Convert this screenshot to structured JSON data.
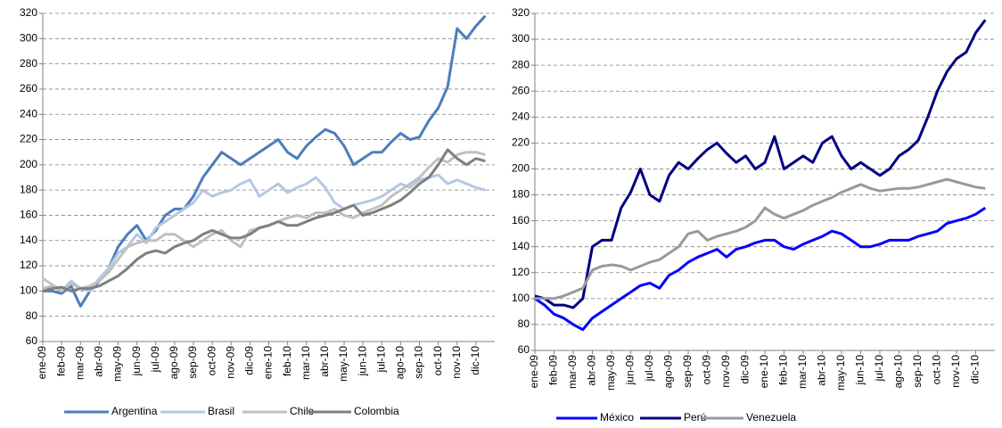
{
  "chart_data": [
    {
      "type": "line",
      "categories": [
        "ene-09",
        null,
        "feb-09",
        null,
        "mar-09",
        null,
        "abr-09",
        null,
        "may-09",
        null,
        "jun-09",
        null,
        "jul-09",
        null,
        "ago-09",
        null,
        "sep-09",
        null,
        "oct-09",
        null,
        "nov-09",
        null,
        "dic-09",
        null,
        "ene-10",
        null,
        "feb-10",
        null,
        "mar-10",
        null,
        "abr-10",
        null,
        "may-10",
        null,
        "jun-10",
        null,
        "jul-10",
        null,
        "ago-10",
        null,
        "sep-10",
        null,
        "oct-10",
        null,
        "nov-10",
        null,
        "dic-10",
        null
      ],
      "series": [
        {
          "name": "Argentina",
          "color": "#4a7ebb",
          "values": [
            100,
            100,
            98,
            104,
            88,
            100,
            108,
            118,
            135,
            145,
            152,
            140,
            148,
            160,
            165,
            165,
            175,
            190,
            200,
            210,
            205,
            200,
            205,
            210,
            215,
            220,
            210,
            205,
            215,
            222,
            228,
            225,
            215,
            200,
            205,
            210,
            210,
            218,
            225,
            220,
            222,
            235,
            245,
            262,
            308,
            300,
            310,
            318
          ]
        },
        {
          "name": "Brasil",
          "color": "#b4c8e4",
          "values": [
            110,
            105,
            100,
            108,
            102,
            100,
            110,
            118,
            130,
            135,
            145,
            138,
            150,
            155,
            160,
            165,
            170,
            180,
            175,
            178,
            180,
            185,
            188,
            175,
            180,
            185,
            178,
            182,
            185,
            190,
            182,
            170,
            165,
            168,
            170,
            172,
            175,
            180,
            185,
            182,
            188,
            190,
            192,
            185,
            188,
            185,
            182,
            180
          ]
        },
        {
          "name": "Chile",
          "color": "#c0c0c0",
          "values": [
            102,
            104,
            100,
            106,
            102,
            104,
            108,
            115,
            125,
            135,
            138,
            140,
            140,
            145,
            145,
            140,
            135,
            140,
            145,
            148,
            140,
            135,
            148,
            150,
            152,
            155,
            158,
            160,
            158,
            162,
            162,
            165,
            160,
            158,
            162,
            165,
            168,
            175,
            180,
            185,
            190,
            198,
            205,
            202,
            208,
            210,
            210,
            208
          ]
        },
        {
          "name": "Colombia",
          "color": "#7f7f7f",
          "values": [
            100,
            102,
            103,
            100,
            102,
            102,
            104,
            108,
            112,
            118,
            125,
            130,
            132,
            130,
            135,
            138,
            140,
            145,
            148,
            145,
            142,
            142,
            145,
            150,
            152,
            155,
            152,
            152,
            155,
            158,
            160,
            162,
            165,
            168,
            160,
            162,
            165,
            168,
            172,
            178,
            185,
            190,
            200,
            212,
            205,
            200,
            205,
            203
          ]
        }
      ],
      "ylim": [
        60,
        320
      ],
      "yticks": [
        60,
        80,
        100,
        120,
        140,
        160,
        180,
        200,
        220,
        240,
        260,
        280,
        300,
        320
      ],
      "grid": true
    },
    {
      "type": "line",
      "categories": [
        "ene-09",
        null,
        "feb-09",
        null,
        "mar-09",
        null,
        "abr-09",
        null,
        "may-09",
        null,
        "jun-09",
        null,
        "jul-09",
        null,
        "ago-09",
        null,
        "sep-09",
        null,
        "oct-09",
        null,
        "nov-09",
        null,
        "dic-09",
        null,
        "ene-10",
        null,
        "feb-10",
        null,
        "mar-10",
        null,
        "abr-10",
        null,
        "may-10",
        null,
        "jun-10",
        null,
        "jul-10",
        null,
        "ago-10",
        null,
        "sep-10",
        null,
        "oct-10",
        null,
        "nov-10",
        null,
        "dic-10",
        null
      ],
      "series": [
        {
          "name": "México",
          "color": "#0000ff",
          "values": [
            100,
            95,
            88,
            85,
            80,
            76,
            85,
            90,
            95,
            100,
            105,
            110,
            112,
            108,
            118,
            122,
            128,
            132,
            135,
            138,
            132,
            138,
            140,
            143,
            145,
            145,
            140,
            138,
            142,
            145,
            148,
            152,
            150,
            145,
            140,
            140,
            142,
            145,
            145,
            145,
            148,
            150,
            152,
            158,
            160,
            162,
            165,
            170
          ]
        },
        {
          "name": "Perú",
          "color": "#000080",
          "values": [
            102,
            100,
            95,
            95,
            93,
            100,
            140,
            145,
            145,
            170,
            182,
            200,
            180,
            175,
            195,
            205,
            200,
            208,
            215,
            220,
            212,
            205,
            210,
            200,
            205,
            225,
            200,
            205,
            210,
            205,
            220,
            225,
            210,
            200,
            205,
            200,
            195,
            200,
            210,
            215,
            222,
            240,
            260,
            275,
            285,
            290,
            305,
            315
          ]
        },
        {
          "name": "Venezuela",
          "color": "#999999",
          "values": [
            100,
            100,
            100,
            102,
            105,
            108,
            122,
            125,
            126,
            125,
            122,
            125,
            128,
            130,
            135,
            140,
            150,
            152,
            145,
            148,
            150,
            152,
            155,
            160,
            170,
            165,
            162,
            165,
            168,
            172,
            175,
            178,
            182,
            185,
            188,
            185,
            183,
            184,
            185,
            185,
            186,
            188,
            190,
            192,
            190,
            188,
            186,
            185
          ]
        }
      ],
      "ylim": [
        60,
        320
      ],
      "yticks": [
        60,
        80,
        100,
        120,
        140,
        160,
        180,
        200,
        220,
        240,
        260,
        280,
        300,
        320
      ],
      "grid": true
    }
  ]
}
